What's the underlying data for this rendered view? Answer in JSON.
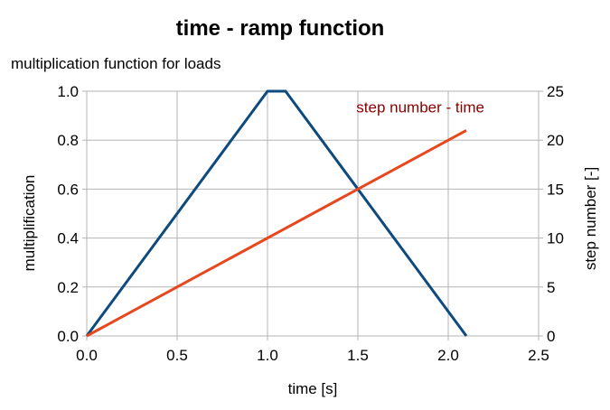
{
  "chart_data": {
    "type": "line",
    "title": "time - ramp function",
    "subtitle": "multiplication function for loads",
    "xlabel": "time [s]",
    "ylabel": "multiplification",
    "y2label": "step number [-]",
    "xlim": [
      0,
      2.5
    ],
    "ylim": [
      0,
      1.0
    ],
    "y2lim": [
      0,
      25
    ],
    "xticks": [
      "0.0",
      "0.5",
      "1.0",
      "1.5",
      "2.0",
      "2.5"
    ],
    "yticks": [
      "0.0",
      "0.2",
      "0.4",
      "0.6",
      "0.8",
      "1.0"
    ],
    "y2ticks": [
      "0",
      "5",
      "10",
      "15",
      "20",
      "25"
    ],
    "grid": true,
    "series": [
      {
        "axis": "left",
        "color": "#0d4a7e",
        "x": [
          0.0,
          1.0,
          1.1,
          2.1
        ],
        "y": [
          0.0,
          1.0,
          1.0,
          0.0
        ]
      },
      {
        "name": "step number - time",
        "axis": "right",
        "color": "#e8461c",
        "label_color": "#8b0000",
        "x": [
          0.0,
          2.1
        ],
        "y": [
          0,
          21
        ]
      }
    ]
  }
}
